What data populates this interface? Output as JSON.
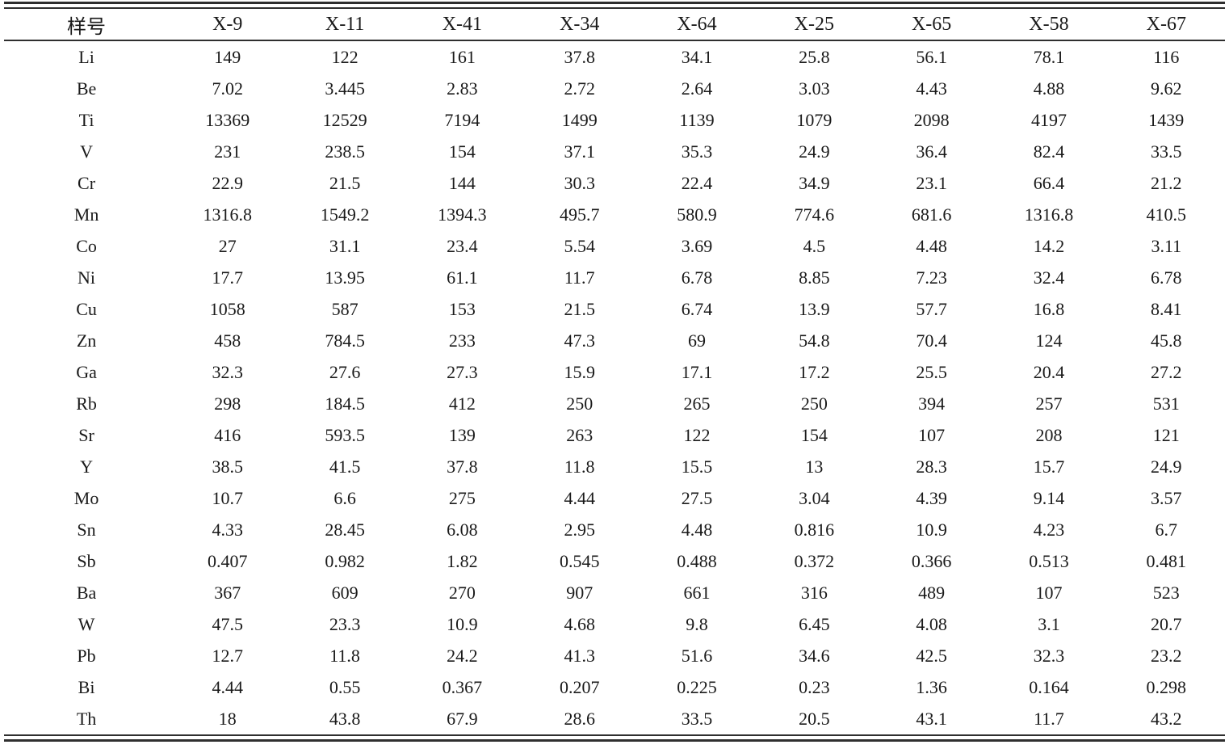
{
  "table": {
    "header": [
      "样号",
      "X-9",
      "X-11",
      "X-41",
      "X-34",
      "X-64",
      "X-25",
      "X-65",
      "X-58",
      "X-67"
    ],
    "rows": [
      {
        "element": "Li",
        "values": [
          "149",
          "122",
          "161",
          "37.8",
          "34.1",
          "25.8",
          "56.1",
          "78.1",
          "116"
        ]
      },
      {
        "element": "Be",
        "values": [
          "7.02",
          "3.445",
          "2.83",
          "2.72",
          "2.64",
          "3.03",
          "4.43",
          "4.88",
          "9.62"
        ]
      },
      {
        "element": "Ti",
        "values": [
          "13369",
          "12529",
          "7194",
          "1499",
          "1139",
          "1079",
          "2098",
          "4197",
          "1439"
        ]
      },
      {
        "element": "V",
        "values": [
          "231",
          "238.5",
          "154",
          "37.1",
          "35.3",
          "24.9",
          "36.4",
          "82.4",
          "33.5"
        ]
      },
      {
        "element": "Cr",
        "values": [
          "22.9",
          "21.5",
          "144",
          "30.3",
          "22.4",
          "34.9",
          "23.1",
          "66.4",
          "21.2"
        ]
      },
      {
        "element": "Mn",
        "values": [
          "1316.8",
          "1549.2",
          "1394.3",
          "495.7",
          "580.9",
          "774.6",
          "681.6",
          "1316.8",
          "410.5"
        ]
      },
      {
        "element": "Co",
        "values": [
          "27",
          "31.1",
          "23.4",
          "5.54",
          "3.69",
          "4.5",
          "4.48",
          "14.2",
          "3.11"
        ]
      },
      {
        "element": "Ni",
        "values": [
          "17.7",
          "13.95",
          "61.1",
          "11.7",
          "6.78",
          "8.85",
          "7.23",
          "32.4",
          "6.78"
        ]
      },
      {
        "element": "Cu",
        "values": [
          "1058",
          "587",
          "153",
          "21.5",
          "6.74",
          "13.9",
          "57.7",
          "16.8",
          "8.41"
        ]
      },
      {
        "element": "Zn",
        "values": [
          "458",
          "784.5",
          "233",
          "47.3",
          "69",
          "54.8",
          "70.4",
          "124",
          "45.8"
        ]
      },
      {
        "element": "Ga",
        "values": [
          "32.3",
          "27.6",
          "27.3",
          "15.9",
          "17.1",
          "17.2",
          "25.5",
          "20.4",
          "27.2"
        ]
      },
      {
        "element": "Rb",
        "values": [
          "298",
          "184.5",
          "412",
          "250",
          "265",
          "250",
          "394",
          "257",
          "531"
        ]
      },
      {
        "element": "Sr",
        "values": [
          "416",
          "593.5",
          "139",
          "263",
          "122",
          "154",
          "107",
          "208",
          "121"
        ]
      },
      {
        "element": "Y",
        "values": [
          "38.5",
          "41.5",
          "37.8",
          "11.8",
          "15.5",
          "13",
          "28.3",
          "15.7",
          "24.9"
        ]
      },
      {
        "element": "Mo",
        "values": [
          "10.7",
          "6.6",
          "275",
          "4.44",
          "27.5",
          "3.04",
          "4.39",
          "9.14",
          "3.57"
        ]
      },
      {
        "element": "Sn",
        "values": [
          "4.33",
          "28.45",
          "6.08",
          "2.95",
          "4.48",
          "0.816",
          "10.9",
          "4.23",
          "6.7"
        ]
      },
      {
        "element": "Sb",
        "values": [
          "0.407",
          "0.982",
          "1.82",
          "0.545",
          "0.488",
          "0.372",
          "0.366",
          "0.513",
          "0.481"
        ]
      },
      {
        "element": "Ba",
        "values": [
          "367",
          "609",
          "270",
          "907",
          "661",
          "316",
          "489",
          "107",
          "523"
        ]
      },
      {
        "element": "W",
        "values": [
          "47.5",
          "23.3",
          "10.9",
          "4.68",
          "9.8",
          "6.45",
          "4.08",
          "3.1",
          "20.7"
        ]
      },
      {
        "element": "Pb",
        "values": [
          "12.7",
          "11.8",
          "24.2",
          "41.3",
          "51.6",
          "34.6",
          "42.5",
          "32.3",
          "23.2"
        ]
      },
      {
        "element": "Bi",
        "values": [
          "4.44",
          "0.55",
          "0.367",
          "0.207",
          "0.225",
          "0.23",
          "1.36",
          "0.164",
          "0.298"
        ]
      },
      {
        "element": "Th",
        "values": [
          "18",
          "43.8",
          "67.9",
          "28.6",
          "33.5",
          "20.5",
          "43.1",
          "11.7",
          "43.2"
        ]
      }
    ],
    "colors": {
      "text": "#1a1a1a",
      "rule": "#2f2f2f",
      "background": "#ffffff"
    }
  }
}
